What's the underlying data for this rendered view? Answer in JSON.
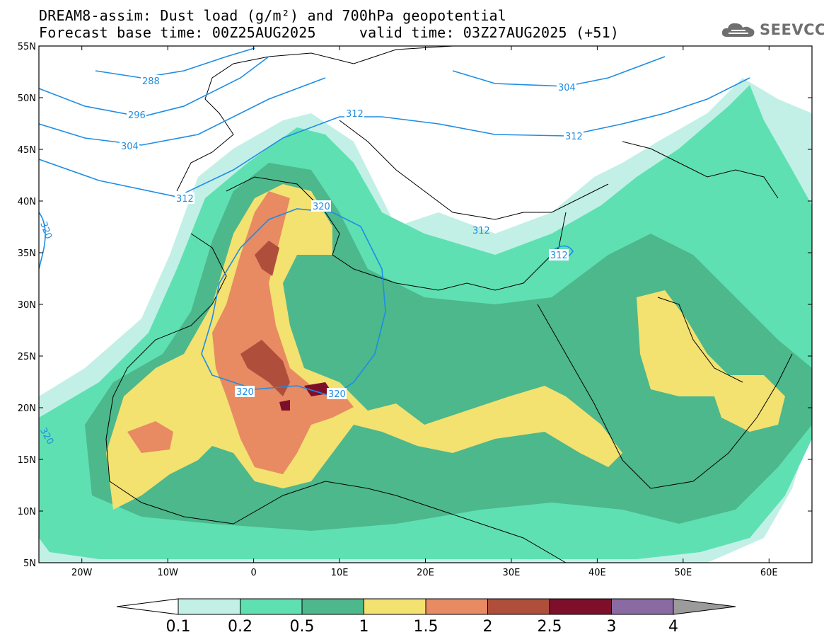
{
  "title": {
    "line1": "DREAM8-assim: Dust load (g/m²) and 700hPa geopotential",
    "line2": "Forecast base time: 00Z25AUG2025     valid time: 03Z27AUG2025 (+51)"
  },
  "logo": {
    "text": "SEEVCCC",
    "icon": "cloud-icon"
  },
  "map": {
    "lon_range": [
      -25,
      65
    ],
    "lat_range": [
      5,
      55
    ],
    "lat_ticks": [
      {
        "value": 55,
        "label": "55N"
      },
      {
        "value": 50,
        "label": "50N"
      },
      {
        "value": 45,
        "label": "45N"
      },
      {
        "value": 40,
        "label": "40N"
      },
      {
        "value": 35,
        "label": "35N"
      },
      {
        "value": 30,
        "label": "30N"
      },
      {
        "value": 25,
        "label": "25N"
      },
      {
        "value": 20,
        "label": "20N"
      },
      {
        "value": 15,
        "label": "15N"
      },
      {
        "value": 10,
        "label": "10N"
      },
      {
        "value": 5,
        "label": "5N"
      }
    ],
    "lon_ticks": [
      {
        "value": -20,
        "label": "20W"
      },
      {
        "value": -10,
        "label": "10W"
      },
      {
        "value": 0,
        "label": "0"
      },
      {
        "value": 10,
        "label": "10E"
      },
      {
        "value": 20,
        "label": "20E"
      },
      {
        "value": 30,
        "label": "30E"
      },
      {
        "value": 40,
        "label": "40E"
      },
      {
        "value": 50,
        "label": "50E"
      },
      {
        "value": 60,
        "label": "60E"
      }
    ],
    "contour_color": "#1e8de3",
    "contour_labels": [
      "288",
      "296",
      "304",
      "312",
      "320",
      "320",
      "320",
      "304",
      "312",
      "312",
      "312",
      "320",
      "312",
      "320"
    ]
  },
  "colorbar": {
    "levels": [
      "0.1",
      "0.2",
      "0.5",
      "1",
      "1.5",
      "2",
      "2.5",
      "3",
      "4"
    ],
    "colors": [
      "#ffffff",
      "#c2f0e6",
      "#5fe0b3",
      "#4cb88c",
      "#f3e170",
      "#e88a62",
      "#b04e3c",
      "#7e0f2b",
      "#8a6aa3",
      "#9b9b9b"
    ]
  }
}
